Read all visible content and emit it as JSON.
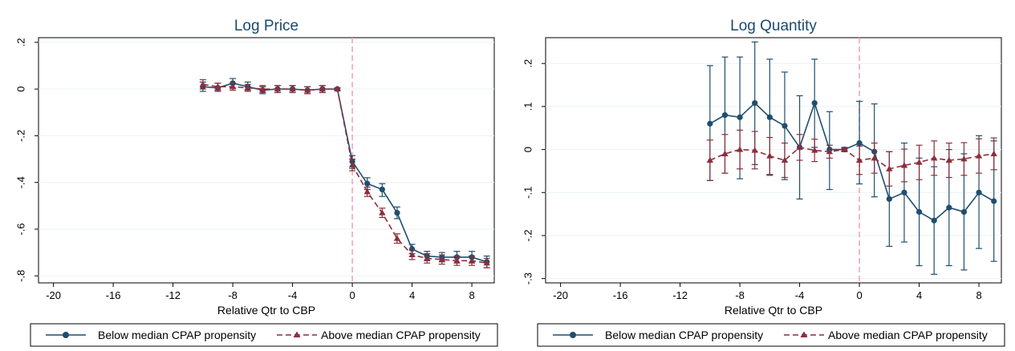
{
  "chart_data": [
    {
      "type": "line",
      "title": "Log Price",
      "xlabel": "Relative Qtr to CBP",
      "ylabel": "",
      "xlim": [
        -21,
        9.5
      ],
      "ylim": [
        -0.83,
        0.22
      ],
      "xticks": [
        -20,
        -16,
        -12,
        -8,
        -4,
        0,
        4,
        8
      ],
      "xtick_labels": [
        "-20",
        "-16",
        "-12",
        "-8",
        "-4",
        "0",
        "4",
        "8"
      ],
      "yticks": [
        0.2,
        0,
        -0.2,
        -0.4,
        -0.6,
        -0.8
      ],
      "ytick_labels": [
        ".2",
        "0",
        "-.2",
        "-.4",
        "-.6",
        "-.8"
      ],
      "vline_x": 0,
      "grid": "horizontal",
      "legend_position": "bottom",
      "x": [
        -10,
        -9,
        -8,
        -7,
        -6,
        -5,
        -4,
        -3,
        -2,
        -1,
        0,
        1,
        2,
        3,
        4,
        5,
        6,
        7,
        8,
        9
      ],
      "series": [
        {
          "name": "Below median CPAP propensity",
          "marker": "circle",
          "color": "#1f4e6e",
          "dash": "solid",
          "values": [
            0.01,
            0.005,
            0.025,
            0.01,
            -0.005,
            0.0,
            0.0,
            -0.005,
            0.0,
            0.0,
            -0.31,
            -0.405,
            -0.43,
            -0.53,
            -0.685,
            -0.715,
            -0.72,
            -0.72,
            -0.72,
            -0.74
          ],
          "ci_low": [
            -0.01,
            -0.01,
            0.005,
            -0.005,
            -0.02,
            -0.015,
            -0.015,
            -0.02,
            -0.015,
            -0.005,
            -0.34,
            -0.43,
            -0.46,
            -0.555,
            -0.705,
            -0.735,
            -0.74,
            -0.745,
            -0.745,
            -0.765
          ],
          "ci_high": [
            0.03,
            0.025,
            0.045,
            0.03,
            0.01,
            0.015,
            0.015,
            0.01,
            0.015,
            0.005,
            -0.285,
            -0.38,
            -0.405,
            -0.505,
            -0.665,
            -0.695,
            -0.7,
            -0.695,
            -0.695,
            -0.715
          ]
        },
        {
          "name": "Above median CPAP propensity",
          "marker": "triangle",
          "color": "#8b2f3c",
          "dash": "dashed",
          "values": [
            0.02,
            0.01,
            0.01,
            0.005,
            0.0,
            0.0,
            0.0,
            -0.005,
            0.0,
            0.0,
            -0.325,
            -0.44,
            -0.53,
            -0.64,
            -0.71,
            -0.725,
            -0.73,
            -0.735,
            -0.735,
            -0.745
          ],
          "ci_low": [
            0.0,
            -0.005,
            -0.005,
            -0.01,
            -0.015,
            -0.015,
            -0.015,
            -0.02,
            -0.015,
            -0.005,
            -0.35,
            -0.46,
            -0.55,
            -0.66,
            -0.73,
            -0.745,
            -0.75,
            -0.755,
            -0.755,
            -0.765
          ],
          "ci_high": [
            0.04,
            0.025,
            0.025,
            0.02,
            0.015,
            0.015,
            0.015,
            0.01,
            0.015,
            0.005,
            -0.3,
            -0.42,
            -0.51,
            -0.62,
            -0.69,
            -0.705,
            -0.71,
            -0.715,
            -0.715,
            -0.725
          ]
        }
      ]
    },
    {
      "type": "line",
      "title": "Log Quantity",
      "xlabel": "Relative Qtr to CBP",
      "ylabel": "",
      "xlim": [
        -21,
        9.5
      ],
      "ylim": [
        -0.31,
        0.26
      ],
      "xticks": [
        -20,
        -16,
        -12,
        -8,
        -4,
        0,
        4,
        8
      ],
      "xtick_labels": [
        "-20",
        "-16",
        "-12",
        "-8",
        "-4",
        "0",
        "4",
        "8"
      ],
      "yticks": [
        0.2,
        0.1,
        0,
        -0.1,
        -0.2,
        -0.3
      ],
      "ytick_labels": [
        ".2",
        ".1",
        "0",
        "-.1",
        "-.2",
        "-.3"
      ],
      "vline_x": 0,
      "grid": "horizontal",
      "legend_position": "bottom",
      "x": [
        -10,
        -9,
        -8,
        -7,
        -6,
        -5,
        -4,
        -3,
        -2,
        -1,
        0,
        1,
        2,
        3,
        4,
        5,
        6,
        7,
        8,
        9
      ],
      "series": [
        {
          "name": "Below median CPAP propensity",
          "marker": "circle",
          "color": "#1f4e6e",
          "dash": "solid",
          "values": [
            0.06,
            0.08,
            0.075,
            0.108,
            0.075,
            0.055,
            0.005,
            0.108,
            0.0,
            0.0,
            0.015,
            -0.005,
            -0.115,
            -0.1,
            -0.145,
            -0.165,
            -0.135,
            -0.145,
            -0.1,
            -0.12
          ],
          "ci_low": [
            -0.072,
            -0.055,
            -0.068,
            -0.035,
            -0.06,
            -0.07,
            -0.115,
            0.005,
            -0.093,
            -0.005,
            -0.08,
            -0.11,
            -0.225,
            -0.215,
            -0.27,
            -0.29,
            -0.27,
            -0.28,
            -0.23,
            -0.26
          ],
          "ci_high": [
            0.195,
            0.215,
            0.215,
            0.25,
            0.21,
            0.18,
            0.125,
            0.21,
            0.088,
            0.005,
            0.112,
            0.106,
            -0.005,
            0.015,
            -0.02,
            -0.04,
            0.0,
            -0.01,
            0.032,
            0.02
          ]
        },
        {
          "name": "Above median CPAP propensity",
          "marker": "triangle",
          "color": "#8b2f3c",
          "dash": "dashed",
          "values": [
            -0.025,
            -0.01,
            0.0,
            -0.002,
            -0.015,
            -0.025,
            0.005,
            -0.002,
            -0.005,
            0.0,
            -0.025,
            -0.02,
            -0.045,
            -0.037,
            -0.03,
            -0.02,
            -0.025,
            -0.022,
            -0.015,
            -0.01
          ],
          "ci_low": [
            -0.072,
            -0.055,
            -0.045,
            -0.045,
            -0.058,
            -0.065,
            -0.025,
            -0.028,
            -0.02,
            -0.003,
            -0.058,
            -0.055,
            -0.085,
            -0.075,
            -0.07,
            -0.06,
            -0.065,
            -0.06,
            -0.055,
            -0.047
          ],
          "ci_high": [
            0.022,
            0.035,
            0.045,
            0.042,
            0.028,
            0.015,
            0.035,
            0.024,
            0.01,
            0.003,
            0.008,
            0.015,
            -0.005,
            0.001,
            0.01,
            0.02,
            0.015,
            0.016,
            0.025,
            0.027
          ]
        }
      ]
    }
  ]
}
